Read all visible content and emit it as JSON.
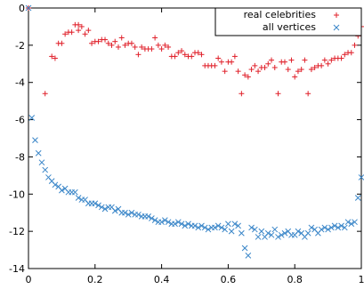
{
  "chart_data": {
    "type": "scatter",
    "xlim": [
      0,
      1
    ],
    "ylim": [
      -14,
      0
    ],
    "x_ticks": [
      0,
      0.2,
      0.4,
      0.6,
      0.8,
      1
    ],
    "x_tick_labels": [
      "0",
      "0.2",
      "0.4",
      "0.6",
      "0.8",
      "1"
    ],
    "y_ticks": [
      0,
      -2,
      -4,
      -6,
      -8,
      -10,
      -12,
      -14
    ],
    "y_tick_labels": [
      "0",
      "-2",
      "-4",
      "-6",
      "-8",
      "-10",
      "-12",
      "-14"
    ],
    "grid": false,
    "legend": {
      "placement": "top-right"
    },
    "series": [
      {
        "name": "real celebrities",
        "marker": "plus",
        "color": "#e0202a",
        "points": [
          [
            0.0,
            0.0
          ],
          [
            0.05,
            -4.6
          ],
          [
            0.07,
            -2.6
          ],
          [
            0.08,
            -2.7
          ],
          [
            0.09,
            -1.9
          ],
          [
            0.1,
            -1.9
          ],
          [
            0.11,
            -1.4
          ],
          [
            0.12,
            -1.3
          ],
          [
            0.13,
            -1.3
          ],
          [
            0.14,
            -0.9
          ],
          [
            0.15,
            -1.2
          ],
          [
            0.15,
            -0.9
          ],
          [
            0.16,
            -1.0
          ],
          [
            0.17,
            -1.4
          ],
          [
            0.18,
            -1.2
          ],
          [
            0.19,
            -1.9
          ],
          [
            0.2,
            -1.8
          ],
          [
            0.21,
            -1.8
          ],
          [
            0.22,
            -1.7
          ],
          [
            0.23,
            -1.7
          ],
          [
            0.24,
            -1.9
          ],
          [
            0.25,
            -2.0
          ],
          [
            0.26,
            -1.8
          ],
          [
            0.27,
            -2.1
          ],
          [
            0.28,
            -1.6
          ],
          [
            0.29,
            -2.0
          ],
          [
            0.3,
            -1.9
          ],
          [
            0.31,
            -1.9
          ],
          [
            0.32,
            -2.1
          ],
          [
            0.33,
            -2.5
          ],
          [
            0.34,
            -2.1
          ],
          [
            0.35,
            -2.2
          ],
          [
            0.36,
            -2.2
          ],
          [
            0.37,
            -2.2
          ],
          [
            0.38,
            -1.6
          ],
          [
            0.39,
            -2.0
          ],
          [
            0.4,
            -2.2
          ],
          [
            0.41,
            -2.0
          ],
          [
            0.42,
            -2.1
          ],
          [
            0.43,
            -2.6
          ],
          [
            0.44,
            -2.6
          ],
          [
            0.45,
            -2.4
          ],
          [
            0.46,
            -2.3
          ],
          [
            0.47,
            -2.5
          ],
          [
            0.48,
            -2.6
          ],
          [
            0.49,
            -2.6
          ],
          [
            0.5,
            -2.4
          ],
          [
            0.51,
            -2.4
          ],
          [
            0.52,
            -2.5
          ],
          [
            0.53,
            -3.1
          ],
          [
            0.54,
            -3.1
          ],
          [
            0.55,
            -3.1
          ],
          [
            0.56,
            -3.1
          ],
          [
            0.57,
            -2.7
          ],
          [
            0.58,
            -2.9
          ],
          [
            0.59,
            -3.4
          ],
          [
            0.6,
            -2.9
          ],
          [
            0.61,
            -2.9
          ],
          [
            0.62,
            -2.6
          ],
          [
            0.63,
            -3.4
          ],
          [
            0.64,
            -4.6
          ],
          [
            0.65,
            -3.6
          ],
          [
            0.66,
            -3.7
          ],
          [
            0.67,
            -3.3
          ],
          [
            0.68,
            -3.1
          ],
          [
            0.69,
            -3.4
          ],
          [
            0.7,
            -3.2
          ],
          [
            0.71,
            -3.2
          ],
          [
            0.72,
            -3.0
          ],
          [
            0.73,
            -2.8
          ],
          [
            0.74,
            -3.2
          ],
          [
            0.75,
            -4.6
          ],
          [
            0.76,
            -2.9
          ],
          [
            0.77,
            -2.9
          ],
          [
            0.78,
            -3.3
          ],
          [
            0.79,
            -2.8
          ],
          [
            0.8,
            -3.7
          ],
          [
            0.81,
            -3.4
          ],
          [
            0.82,
            -3.3
          ],
          [
            0.83,
            -2.8
          ],
          [
            0.84,
            -4.6
          ],
          [
            0.85,
            -3.3
          ],
          [
            0.86,
            -3.2
          ],
          [
            0.87,
            -3.1
          ],
          [
            0.88,
            -3.1
          ],
          [
            0.89,
            -2.8
          ],
          [
            0.9,
            -3.0
          ],
          [
            0.91,
            -2.8
          ],
          [
            0.92,
            -2.7
          ],
          [
            0.93,
            -2.7
          ],
          [
            0.94,
            -2.7
          ],
          [
            0.95,
            -2.5
          ],
          [
            0.96,
            -2.4
          ],
          [
            0.97,
            -2.4
          ],
          [
            0.98,
            -2.0
          ],
          [
            0.99,
            -1.5
          ],
          [
            1.0,
            -1.0
          ]
        ]
      },
      {
        "name": "all vertices",
        "marker": "cross",
        "color": "#3a86c8",
        "points": [
          [
            0.0,
            0.0
          ],
          [
            0.01,
            -5.9
          ],
          [
            0.02,
            -7.1
          ],
          [
            0.03,
            -7.8
          ],
          [
            0.04,
            -8.3
          ],
          [
            0.05,
            -8.7
          ],
          [
            0.06,
            -9.1
          ],
          [
            0.07,
            -9.3
          ],
          [
            0.08,
            -9.5
          ],
          [
            0.09,
            -9.6
          ],
          [
            0.1,
            -9.8
          ],
          [
            0.11,
            -9.7
          ],
          [
            0.12,
            -9.9
          ],
          [
            0.13,
            -9.9
          ],
          [
            0.14,
            -9.9
          ],
          [
            0.15,
            -10.2
          ],
          [
            0.16,
            -10.3
          ],
          [
            0.17,
            -10.3
          ],
          [
            0.18,
            -10.5
          ],
          [
            0.19,
            -10.5
          ],
          [
            0.2,
            -10.5
          ],
          [
            0.21,
            -10.6
          ],
          [
            0.22,
            -10.7
          ],
          [
            0.23,
            -10.8
          ],
          [
            0.24,
            -10.7
          ],
          [
            0.25,
            -10.7
          ],
          [
            0.26,
            -10.9
          ],
          [
            0.27,
            -10.8
          ],
          [
            0.28,
            -11.0
          ],
          [
            0.29,
            -11.0
          ],
          [
            0.3,
            -11.1
          ],
          [
            0.31,
            -11.0
          ],
          [
            0.32,
            -11.1
          ],
          [
            0.33,
            -11.1
          ],
          [
            0.34,
            -11.2
          ],
          [
            0.35,
            -11.2
          ],
          [
            0.36,
            -11.2
          ],
          [
            0.37,
            -11.3
          ],
          [
            0.38,
            -11.4
          ],
          [
            0.39,
            -11.5
          ],
          [
            0.4,
            -11.5
          ],
          [
            0.41,
            -11.4
          ],
          [
            0.42,
            -11.5
          ],
          [
            0.43,
            -11.6
          ],
          [
            0.44,
            -11.6
          ],
          [
            0.45,
            -11.5
          ],
          [
            0.46,
            -11.6
          ],
          [
            0.47,
            -11.7
          ],
          [
            0.48,
            -11.6
          ],
          [
            0.49,
            -11.7
          ],
          [
            0.5,
            -11.7
          ],
          [
            0.51,
            -11.8
          ],
          [
            0.52,
            -11.7
          ],
          [
            0.53,
            -11.8
          ],
          [
            0.54,
            -11.9
          ],
          [
            0.55,
            -11.8
          ],
          [
            0.56,
            -11.8
          ],
          [
            0.57,
            -11.7
          ],
          [
            0.58,
            -11.8
          ],
          [
            0.59,
            -11.9
          ],
          [
            0.6,
            -11.6
          ],
          [
            0.61,
            -12.0
          ],
          [
            0.62,
            -11.6
          ],
          [
            0.63,
            -11.7
          ],
          [
            0.64,
            -12.1
          ],
          [
            0.65,
            -12.9
          ],
          [
            0.66,
            -13.3
          ],
          [
            0.67,
            -11.8
          ],
          [
            0.68,
            -11.9
          ],
          [
            0.69,
            -12.3
          ],
          [
            0.7,
            -12.0
          ],
          [
            0.71,
            -12.3
          ],
          [
            0.72,
            -12.1
          ],
          [
            0.73,
            -12.2
          ],
          [
            0.74,
            -11.9
          ],
          [
            0.75,
            -12.3
          ],
          [
            0.76,
            -12.2
          ],
          [
            0.77,
            -12.1
          ],
          [
            0.78,
            -12.0
          ],
          [
            0.79,
            -12.2
          ],
          [
            0.8,
            -12.2
          ],
          [
            0.81,
            -12.0
          ],
          [
            0.82,
            -12.1
          ],
          [
            0.83,
            -12.3
          ],
          [
            0.84,
            -12.1
          ],
          [
            0.85,
            -11.8
          ],
          [
            0.86,
            -11.9
          ],
          [
            0.87,
            -12.1
          ],
          [
            0.88,
            -11.9
          ],
          [
            0.89,
            -11.8
          ],
          [
            0.9,
            -11.9
          ],
          [
            0.91,
            -11.8
          ],
          [
            0.92,
            -11.7
          ],
          [
            0.93,
            -11.8
          ],
          [
            0.94,
            -11.7
          ],
          [
            0.95,
            -11.8
          ],
          [
            0.96,
            -11.5
          ],
          [
            0.97,
            -11.6
          ],
          [
            0.98,
            -11.5
          ],
          [
            0.99,
            -10.2
          ],
          [
            1.0,
            -9.1
          ]
        ]
      }
    ]
  }
}
